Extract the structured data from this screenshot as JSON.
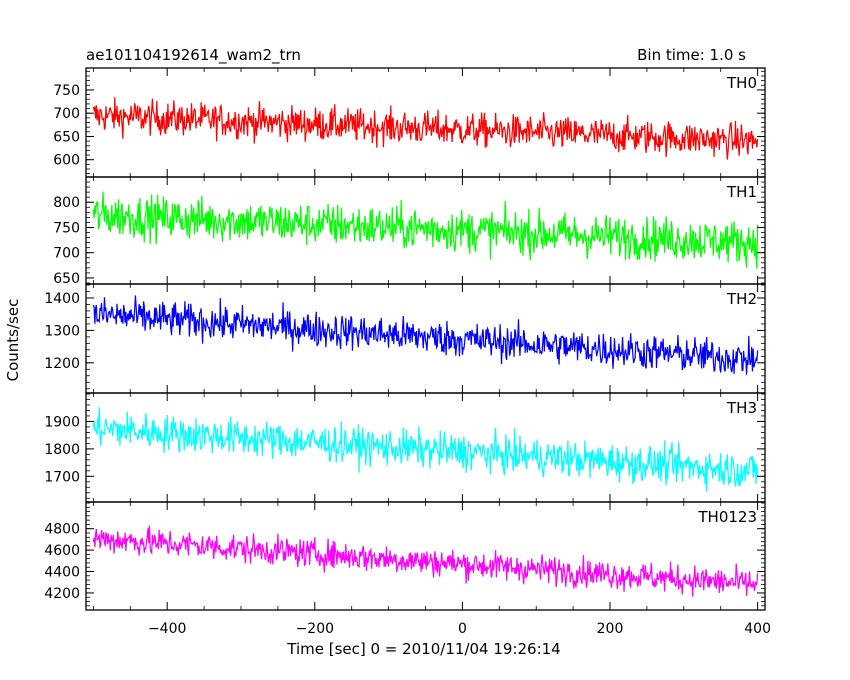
{
  "chart_data": {
    "type": "line",
    "title_left": "ae101104192614_wam2_trn",
    "title_right": "Bin time: 1.0 s",
    "xlabel": "Time [sec] 0 = 2010/11/04 19:26:14",
    "ylabel": "Counts/sec",
    "xlim": [
      -510,
      410
    ],
    "xticks": [
      -400,
      -200,
      0,
      200,
      400
    ],
    "grid": false,
    "panels": [
      {
        "name": "TH0",
        "color": "#ff0000",
        "ylim": [
          565,
          795
        ],
        "yticks": [
          600,
          650,
          700,
          750
        ],
        "trend": {
          "x": [
            -500,
            400
          ],
          "y": [
            695,
            640
          ]
        },
        "noise_amplitude": 30
      },
      {
        "name": "TH1",
        "color": "#00ff00",
        "ylim": [
          640,
          848
        ],
        "yticks": [
          650,
          700,
          750,
          800
        ],
        "trend": {
          "x": [
            -500,
            400
          ],
          "y": [
            775,
            720
          ]
        },
        "noise_amplitude": 35
      },
      {
        "name": "TH2",
        "color": "#0000ff",
        "ylim": [
          1110,
          1440
        ],
        "yticks": [
          1200,
          1300,
          1400
        ],
        "trend": {
          "x": [
            -500,
            400
          ],
          "y": [
            1350,
            1210
          ]
        },
        "noise_amplitude": 45
      },
      {
        "name": "TH3",
        "color": "#00ffff",
        "ylim": [
          1610,
          2000
        ],
        "yticks": [
          1700,
          1800,
          1900
        ],
        "trend": {
          "x": [
            -500,
            400
          ],
          "y": [
            1875,
            1720
          ]
        },
        "noise_amplitude": 55
      },
      {
        "name": "TH0123",
        "color": "#ff00ff",
        "ylim": [
          4050,
          5040
        ],
        "yticks": [
          4200,
          4400,
          4600,
          4800
        ],
        "trend": {
          "x": [
            -500,
            400
          ],
          "y": [
            4710,
            4280
          ]
        },
        "noise_amplitude": 110
      }
    ]
  }
}
